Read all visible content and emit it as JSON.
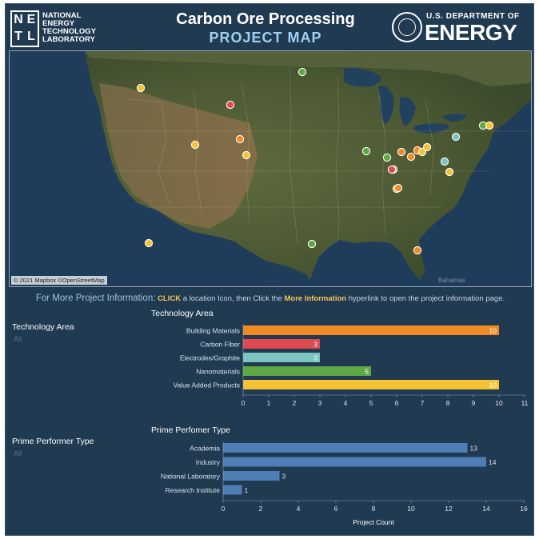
{
  "header": {
    "netl_letters": [
      "N",
      "E",
      "T",
      "L"
    ],
    "netl_lines": [
      "NATIONAL",
      "ENERGY",
      "TECHNOLOGY",
      "LABORATORY"
    ],
    "title": "Carbon Ore Processing",
    "subtitle": "PROJECT MAP",
    "doe_small": "U.S. DEPARTMENT OF",
    "doe_big": "ENERGY"
  },
  "map": {
    "credit": "© 2021 Mapbox ©OpenStreetMap",
    "place_label": "Bahamas",
    "markers": [
      {
        "tech": "Value Added Products"
      },
      {
        "tech": "Nanomaterials"
      },
      {
        "tech": "Carbon Fiber"
      },
      {
        "tech": "Value Added Products"
      },
      {
        "tech": "Building Materials"
      },
      {
        "tech": "Value Added Products"
      },
      {
        "tech": "Electrodes/Graphite"
      },
      {
        "tech": "Nanomaterials"
      },
      {
        "tech": "Building Materials"
      },
      {
        "tech": "Nanomaterials"
      },
      {
        "tech": "Building Materials"
      },
      {
        "tech": "Building Materials"
      },
      {
        "tech": "Value Added Products"
      },
      {
        "tech": "Value Added Products"
      },
      {
        "tech": "Value Added Products"
      },
      {
        "tech": "Electrodes/Graphite"
      },
      {
        "tech": "Nanomaterials"
      },
      {
        "tech": "Value Added Products"
      },
      {
        "tech": "Building Materials"
      },
      {
        "tech": "Carbon Fiber"
      },
      {
        "tech": "Building Materials"
      },
      {
        "tech": "Building Materials"
      },
      {
        "tech": "Nanomaterials"
      },
      {
        "tech": "Building Materials"
      },
      {
        "tech": "Value Added Products"
      }
    ]
  },
  "info": {
    "lead": "For More Project Information:",
    "click": "CLICK",
    "mid": " a location Icon, then Click the ",
    "more": "More Information",
    "tail": " hyperlink to open the project information page."
  },
  "filters": {
    "tech_label": "Technology Area",
    "tech_value": "All",
    "prime_label": "Prime Performer Type",
    "prime_value": "All"
  },
  "colors": {
    "Building Materials": "#f08a24",
    "Carbon Fiber": "#e04a4f",
    "Electrodes/Graphite": "#7dc4c0",
    "Nanomaterials": "#5ea845",
    "Value Added Products": "#f4c233",
    "prime_bar": "#4f7db5"
  },
  "chart_data": [
    {
      "type": "bar",
      "orientation": "horizontal",
      "title": "Technology Area",
      "categories": [
        "Building Materials",
        "Carbon Fiber",
        "Electrodes/Graphite",
        "Nanomaterials",
        "Value Added Products"
      ],
      "values": [
        10,
        3,
        3,
        5,
        10
      ],
      "xlim": [
        0,
        11
      ],
      "xticks": [
        0,
        1,
        2,
        3,
        4,
        5,
        6,
        7,
        8,
        9,
        10,
        11
      ],
      "xlabel": "",
      "grid": false
    },
    {
      "type": "bar",
      "orientation": "horizontal",
      "title": "Prime Perfomer Type",
      "categories": [
        "Academia",
        "Industry",
        "National Laboratory",
        "Research Institute"
      ],
      "values": [
        13,
        14,
        3,
        1
      ],
      "xlim": [
        0,
        16
      ],
      "xticks": [
        0,
        2,
        4,
        6,
        8,
        10,
        12,
        14,
        16
      ],
      "xlabel": "Project Count",
      "grid": false
    }
  ]
}
